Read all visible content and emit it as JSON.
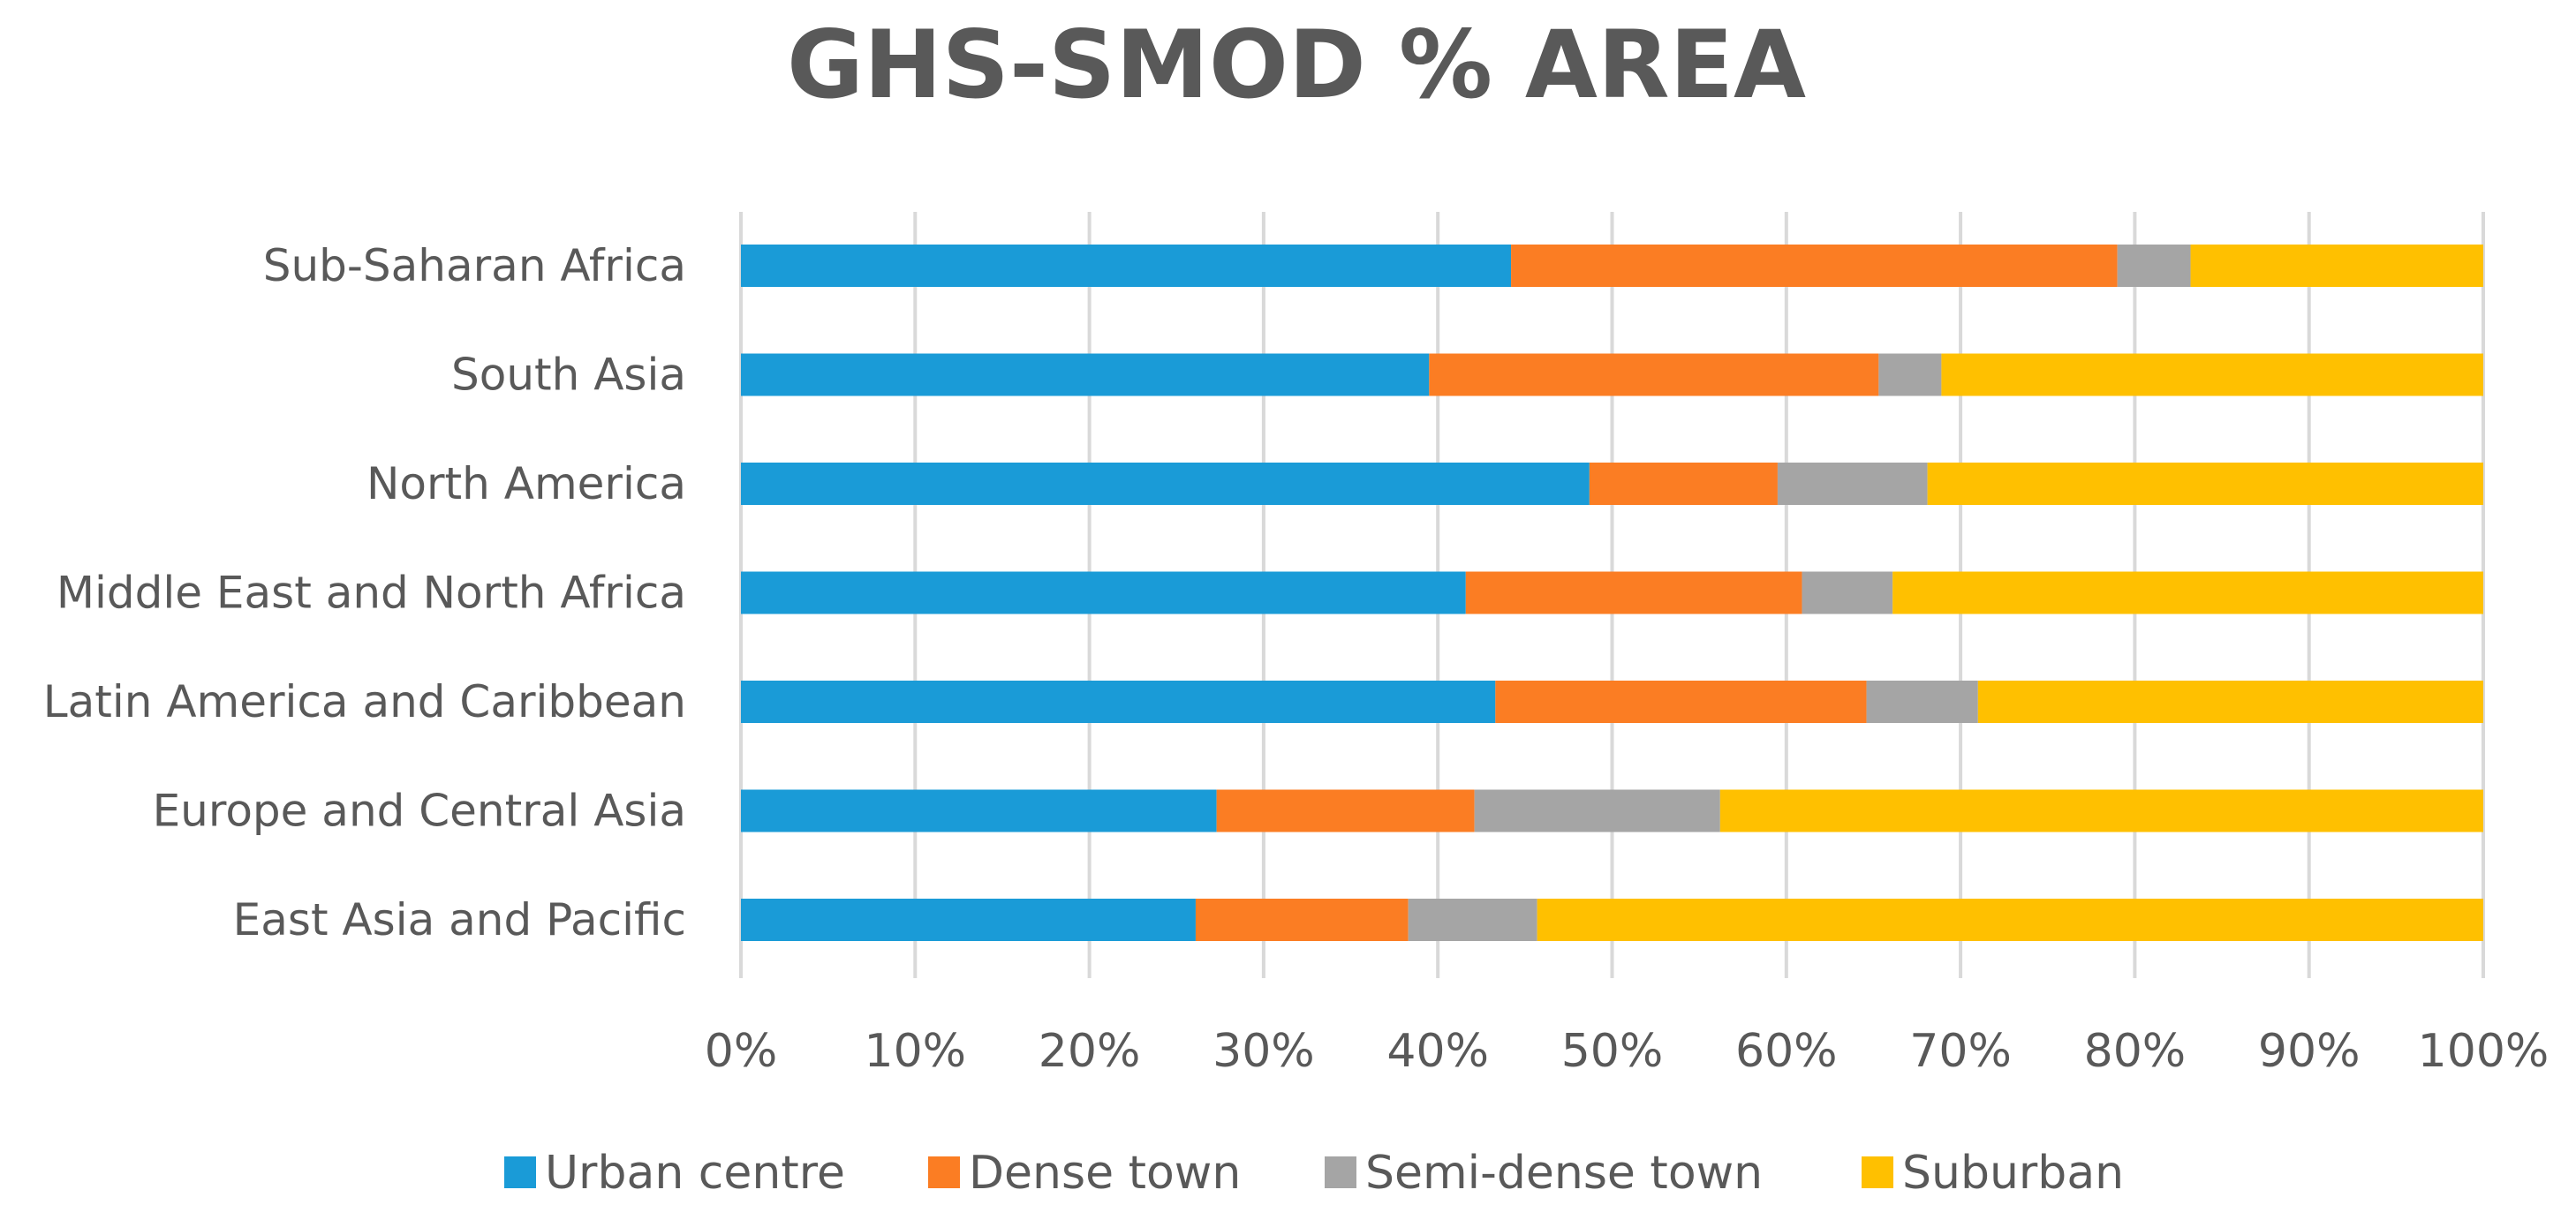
{
  "chart_data": {
    "type": "bar",
    "orientation": "horizontal",
    "stacked": "percent",
    "title": "GHS-SMOD % AREA",
    "xlabel": "",
    "ylabel": "",
    "xlim": [
      0,
      100
    ],
    "x_ticks": [
      "0%",
      "10%",
      "20%",
      "30%",
      "40%",
      "50%",
      "60%",
      "70%",
      "80%",
      "90%",
      "100%"
    ],
    "grid": true,
    "legend_position": "bottom",
    "categories": [
      "Sub-Saharan Africa",
      "South Asia",
      "North America",
      "Middle East and North Africa",
      "Latin America and Caribbean",
      "Europe and Central Asia",
      "East Asia and Pacific"
    ],
    "series": [
      {
        "name": "Urban centre",
        "color": "#1a9bd7",
        "values": [
          44.2,
          39.5,
          48.7,
          41.6,
          43.3,
          27.3,
          26.1
        ]
      },
      {
        "name": "Dense town",
        "color": "#fb7d23",
        "values": [
          34.8,
          25.8,
          10.8,
          19.3,
          21.3,
          14.8,
          12.2
        ]
      },
      {
        "name": "Semi-dense town",
        "color": "#a5a5a5",
        "values": [
          4.2,
          3.6,
          8.6,
          5.2,
          6.4,
          14.1,
          7.4
        ]
      },
      {
        "name": "Suburban",
        "color": "#ffc000",
        "values": [
          16.8,
          31.1,
          31.9,
          33.9,
          29.0,
          43.8,
          54.3
        ]
      }
    ]
  }
}
